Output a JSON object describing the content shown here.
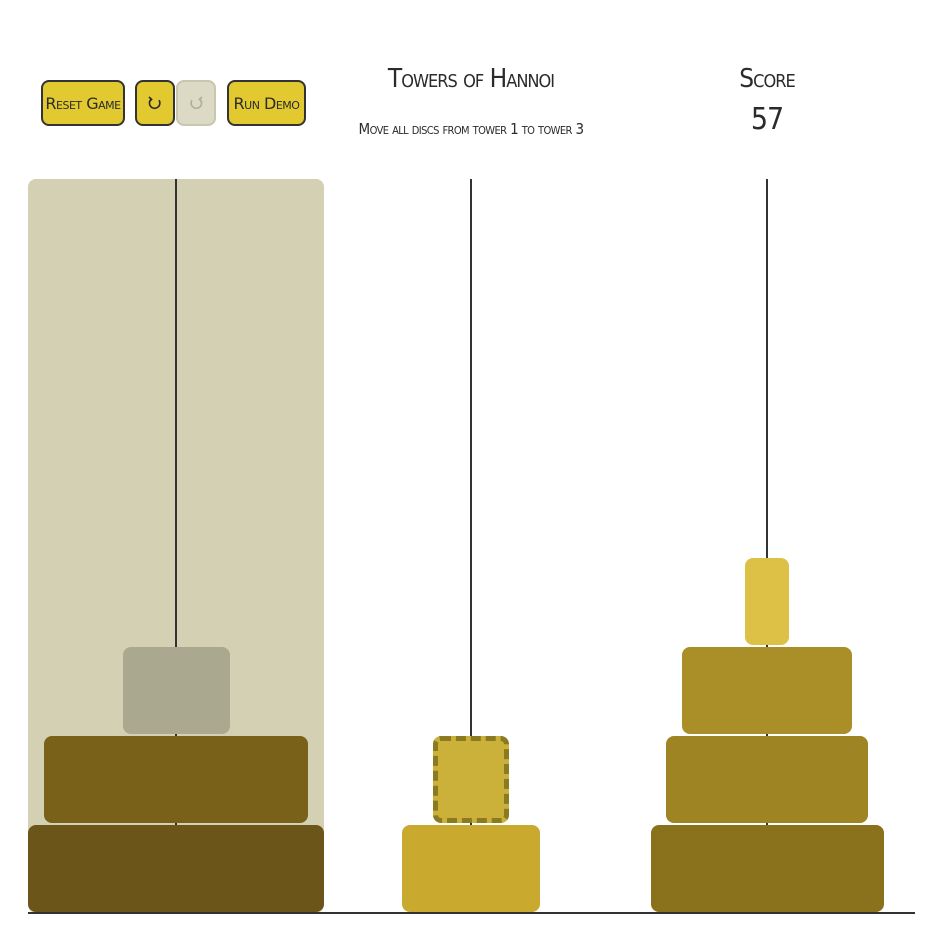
{
  "controls": {
    "reset_label": "Reset Game",
    "run_demo_label": "Run Demo",
    "undo_icon": "undo-arrow-icon",
    "redo_icon": "redo-arrow-icon",
    "redo_disabled": true
  },
  "header": {
    "title": "Towers of Hannoi",
    "subtitle": "Move all discs from tower 1 to tower 3"
  },
  "score": {
    "label": "Score",
    "value": "57"
  },
  "game": {
    "selected_tower": 1,
    "towers": [
      {
        "number": 1,
        "highlighted": true,
        "discs": [
          {
            "size": 8,
            "color": "#6b5518"
          },
          {
            "size": 7,
            "color": "#7a611a"
          },
          {
            "size": 2,
            "color": "#aaa98f"
          }
        ]
      },
      {
        "number": 2,
        "highlighted": false,
        "discs": [
          {
            "size": 3,
            "color": "#c9aa2e"
          },
          {
            "size": 1,
            "color": "#cbb03a",
            "selected": true
          }
        ]
      },
      {
        "number": 3,
        "highlighted": false,
        "discs": [
          {
            "size": 6,
            "color": "#8a721c"
          },
          {
            "size": 5,
            "color": "#9e8422"
          },
          {
            "size": 4,
            "color": "#aa8e27"
          },
          {
            "size": 0,
            "color": "#dcc146"
          }
        ]
      }
    ]
  }
}
